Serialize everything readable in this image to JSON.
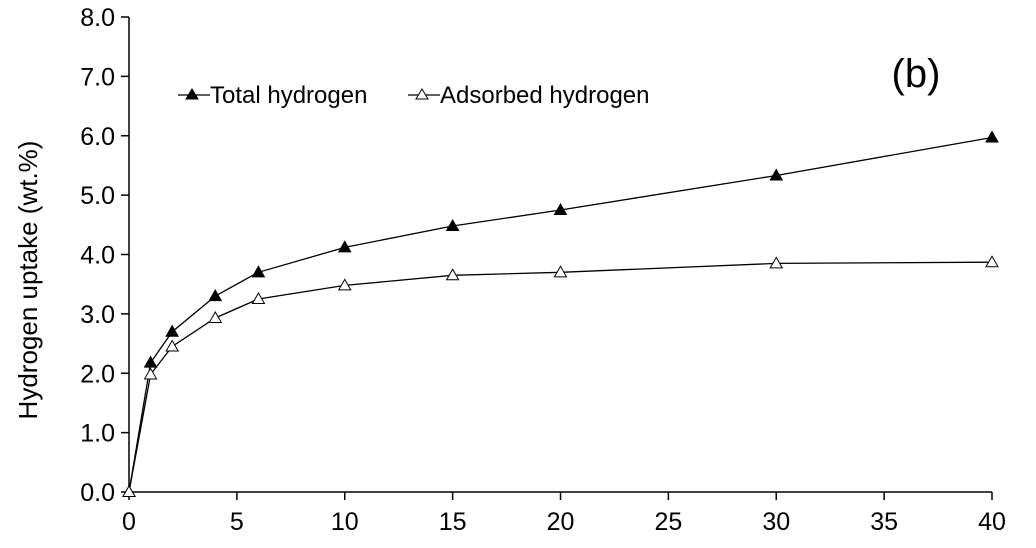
{
  "chart_data": {
    "type": "line",
    "panel_label": "(b)",
    "ylabel": "Hydrogen uptake (wt.%)",
    "xlabel": "",
    "xlim": [
      0,
      40
    ],
    "ylim": [
      0,
      8
    ],
    "x_ticks": [
      0,
      5,
      10,
      15,
      20,
      25,
      30,
      35,
      40
    ],
    "x_tick_labels": [
      "0",
      "5",
      "10",
      "15",
      "20",
      "25",
      "30",
      "35",
      "40"
    ],
    "y_ticks": [
      0,
      1,
      2,
      3,
      4,
      5,
      6,
      7,
      8
    ],
    "y_tick_labels": [
      "0.0",
      "1.0",
      "2.0",
      "3.0",
      "4.0",
      "5.0",
      "6.0",
      "7.0",
      "8.0"
    ],
    "grid": false,
    "legend_position": "top-left",
    "series": [
      {
        "name": "Total hydrogen",
        "marker": "filled-triangle",
        "color": "#000000",
        "x": [
          0,
          1,
          2,
          4,
          6,
          10,
          15,
          20,
          30,
          40
        ],
        "y": [
          0.0,
          2.18,
          2.7,
          3.3,
          3.7,
          4.12,
          4.48,
          4.75,
          5.33,
          5.97
        ]
      },
      {
        "name": "Adsorbed hydrogen",
        "marker": "open-triangle",
        "color": "#000000",
        "x": [
          0,
          1,
          2,
          4,
          6,
          10,
          15,
          20,
          30,
          40
        ],
        "y": [
          0.0,
          1.98,
          2.45,
          2.93,
          3.25,
          3.48,
          3.65,
          3.7,
          3.85,
          3.87
        ]
      }
    ]
  }
}
